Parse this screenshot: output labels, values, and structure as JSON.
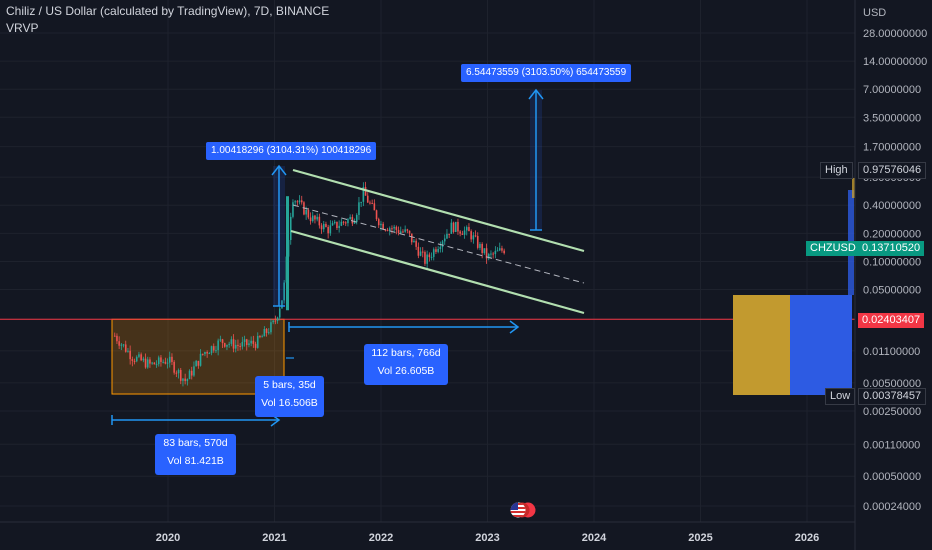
{
  "header": {
    "title": "Chiliz / US Dollar (calculated by TradingView), 7D, BINANCE",
    "indicator": "VRVP"
  },
  "colors": {
    "background": "#131722",
    "grid": "#1e222d",
    "up": "#26a69a",
    "down": "#ef5350",
    "channel": "#b2dfb0",
    "measure": "#2962ff",
    "horizontal_line": "#f23645",
    "range_box": "#ff9800",
    "vp_up": "#c29a2f",
    "vp_down": "#2d5be3"
  },
  "chart_data": {
    "type": "candlestick",
    "symbol": "CHZUSD",
    "yaxis": {
      "unit": "USD",
      "scale": "log",
      "ticks": [
        "28.00000000",
        "14.00000000",
        "7.00000000",
        "3.50000000",
        "1.70000000",
        "0.80000000",
        "0.40000000",
        "0.20000000",
        "0.10000000",
        "0.05000000",
        "0.02400000",
        "0.01100000",
        "0.00500000",
        "0.00250000",
        "0.00110000",
        "0.00050000",
        "0.00024000"
      ]
    },
    "xaxis": {
      "ticks": [
        "2020",
        "2021",
        "2022",
        "2023",
        "2024",
        "2025",
        "2026"
      ]
    },
    "price_tags": {
      "high": {
        "label": "High",
        "value": "0.97576046"
      },
      "current": {
        "label": "CHZUSD",
        "value": "0.13710520"
      },
      "horizontal_level": {
        "value": "0.02403407"
      },
      "low": {
        "label": "Low",
        "value": "0.00378457"
      }
    },
    "price_range_measures": [
      {
        "label": "1.00418296 (3104.31%) 100418296"
      },
      {
        "label": "6.54473559 (3103.50%) 654473559"
      }
    ],
    "date_range_measures": [
      {
        "bars": "83 bars, 570d",
        "volume": "Vol 81.421B"
      },
      {
        "bars": "5 bars, 35d",
        "volume": "Vol 16.506B"
      },
      {
        "bars": "112 bars, 766d",
        "volume": "Vol 26.605B"
      }
    ],
    "price_path": [
      {
        "date": "2019-07",
        "close": 0.016
      },
      {
        "date": "2019-09",
        "close": 0.0095
      },
      {
        "date": "2019-11",
        "close": 0.0078
      },
      {
        "date": "2020-01",
        "close": 0.0088
      },
      {
        "date": "2020-03",
        "close": 0.0052
      },
      {
        "date": "2020-05",
        "close": 0.0105
      },
      {
        "date": "2020-07",
        "close": 0.014
      },
      {
        "date": "2020-09",
        "close": 0.0125
      },
      {
        "date": "2020-11",
        "close": 0.0135
      },
      {
        "date": "2021-01",
        "close": 0.022
      },
      {
        "date": "2021-02",
        "close": 0.045
      },
      {
        "date": "2021-03",
        "close": 0.5
      },
      {
        "date": "2021-05",
        "close": 0.3
      },
      {
        "date": "2021-07",
        "close": 0.22
      },
      {
        "date": "2021-10",
        "close": 0.3
      },
      {
        "date": "2021-11",
        "close": 0.55
      },
      {
        "date": "2022-01",
        "close": 0.25
      },
      {
        "date": "2022-04",
        "close": 0.2
      },
      {
        "date": "2022-06",
        "close": 0.1
      },
      {
        "date": "2022-09",
        "close": 0.24
      },
      {
        "date": "2022-11",
        "close": 0.2
      },
      {
        "date": "2023-01",
        "close": 0.11
      },
      {
        "date": "2023-03",
        "close": 0.1371
      }
    ]
  }
}
